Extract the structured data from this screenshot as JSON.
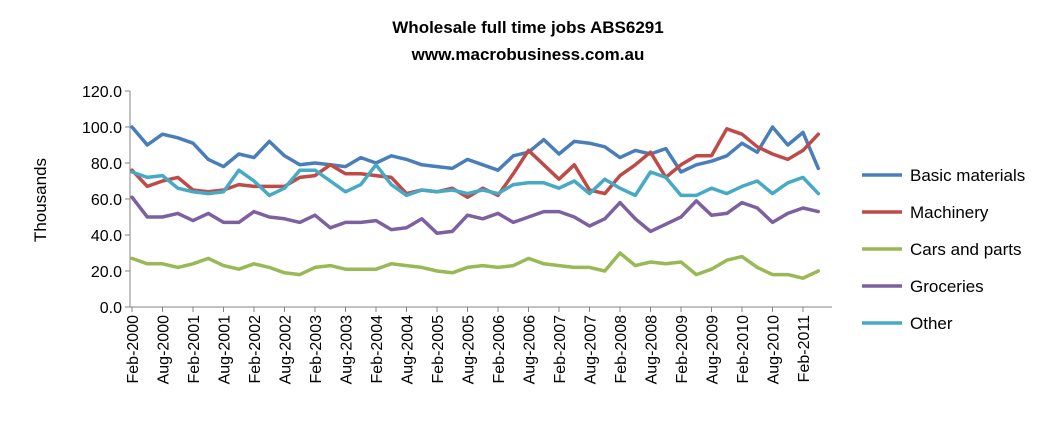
{
  "chart_data": {
    "type": "line",
    "title": "Wholesale full time jobs ABS6291",
    "subtitle": "www.macrobusiness.com.au",
    "xlabel": "",
    "ylabel": "Thousands",
    "ylim": [
      0,
      120
    ],
    "yticks": [
      "0.0",
      "20.0",
      "40.0",
      "60.0",
      "80.0",
      "100.0",
      "120.0"
    ],
    "x_tick_labels": [
      "Feb-2000",
      "Aug-2000",
      "Feb-2001",
      "Aug-2001",
      "Feb-2002",
      "Aug-2002",
      "Feb-2003",
      "Aug-2003",
      "Feb-2004",
      "Aug-2004",
      "Feb-2005",
      "Aug-2005",
      "Feb-2006",
      "Aug-2006",
      "Feb-2007",
      "Aug-2007",
      "Feb-2008",
      "Aug-2008",
      "Feb-2009",
      "Aug-2009",
      "Feb-2010",
      "Aug-2010",
      "Feb-2011"
    ],
    "start_label": "Feb-2000",
    "period": "quarterly",
    "grid": false,
    "legend": "right",
    "series": [
      {
        "name": "Basic materials",
        "color": "#4a7ebb",
        "values": [
          100,
          90,
          96,
          94,
          91,
          82,
          78,
          85,
          83,
          92,
          84,
          79,
          80,
          79,
          78,
          83,
          80,
          84,
          82,
          79,
          78,
          77,
          82,
          79,
          76,
          84,
          86,
          93,
          85,
          92,
          91,
          89,
          83,
          87,
          85,
          88,
          75,
          79,
          81,
          84,
          91,
          86,
          100,
          90,
          97,
          77
        ]
      },
      {
        "name": "Machinery",
        "color": "#be4b48",
        "values": [
          76,
          67,
          70,
          72,
          65,
          64,
          65,
          68,
          67,
          67,
          67,
          72,
          73,
          79,
          74,
          74,
          73,
          72,
          63,
          65,
          64,
          66,
          61,
          66,
          62,
          74,
          87,
          79,
          71,
          79,
          65,
          63,
          73,
          79,
          86,
          72,
          79,
          84,
          84,
          99,
          96,
          89,
          85,
          82,
          87,
          96
        ]
      },
      {
        "name": "Cars and parts",
        "color": "#98b954",
        "values": [
          27,
          24,
          24,
          22,
          24,
          27,
          23,
          21,
          24,
          22,
          19,
          18,
          22,
          23,
          21,
          21,
          21,
          24,
          23,
          22,
          20,
          19,
          22,
          23,
          22,
          23,
          27,
          24,
          23,
          22,
          22,
          20,
          30,
          23,
          25,
          24,
          25,
          18,
          21,
          26,
          28,
          22,
          18,
          18,
          16,
          20
        ]
      },
      {
        "name": "Groceries",
        "color": "#7d60a0",
        "values": [
          61,
          50,
          50,
          52,
          48,
          52,
          47,
          47,
          53,
          50,
          49,
          47,
          51,
          44,
          47,
          47,
          48,
          43,
          44,
          49,
          41,
          42,
          51,
          49,
          52,
          47,
          50,
          53,
          53,
          50,
          45,
          49,
          58,
          49,
          42,
          46,
          50,
          59,
          51,
          52,
          58,
          55,
          47,
          52,
          55,
          53
        ]
      },
      {
        "name": "Other",
        "color": "#46aac5",
        "values": [
          75,
          72,
          73,
          66,
          64,
          63,
          64,
          76,
          70,
          62,
          66,
          76,
          76,
          70,
          64,
          68,
          79,
          68,
          62,
          65,
          64,
          65,
          63,
          65,
          63,
          68,
          69,
          69,
          66,
          70,
          63,
          71,
          66,
          62,
          75,
          72,
          62,
          62,
          66,
          63,
          67,
          70,
          63,
          69,
          72,
          63
        ]
      }
    ]
  }
}
